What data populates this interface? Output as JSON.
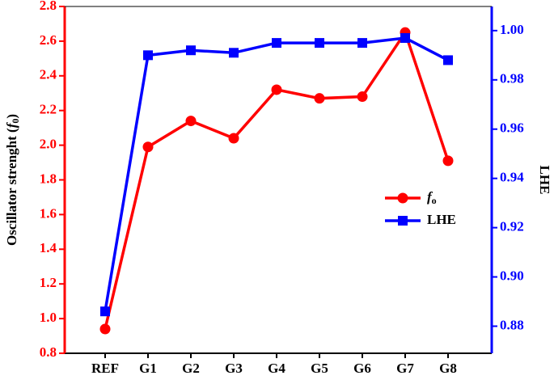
{
  "chart_data": {
    "type": "line",
    "y_label": "Oscillator strenght (f0)",
    "y2_label": "LHE",
    "categories": [
      "REF",
      "G1",
      "G2",
      "G3",
      "G4",
      "G5",
      "G6",
      "G7",
      "G8"
    ],
    "series": [
      {
        "name": "fo",
        "color": "#ff0000",
        "marker": "circle",
        "values": [
          0.94,
          1.99,
          2.14,
          2.04,
          2.32,
          2.27,
          2.28,
          2.65,
          1.91
        ]
      },
      {
        "name": "LHE",
        "color": "#0000ff",
        "marker": "square",
        "axis": "y2",
        "values": [
          0.886,
          0.99,
          0.992,
          0.991,
          0.995,
          0.995,
          0.995,
          0.997,
          0.988
        ]
      }
    ],
    "ylim": [
      0.8,
      2.8
    ],
    "yticks": [
      0.8,
      {
        "value": 1,
        "label": "1.0"
      },
      1.2,
      1.4,
      1.6,
      1.8,
      {
        "value": 2,
        "label": "2.0"
      },
      2.2,
      2.4,
      2.6,
      2.8
    ],
    "y2lim": [
      0.869,
      1.0098
    ],
    "y2ticks": [
      0.88,
      {
        "value": 0.9,
        "label": "0.90"
      },
      0.92,
      0.94,
      0.96,
      0.98,
      {
        "value": 1,
        "label": "1.00"
      }
    ],
    "legend": "right"
  }
}
